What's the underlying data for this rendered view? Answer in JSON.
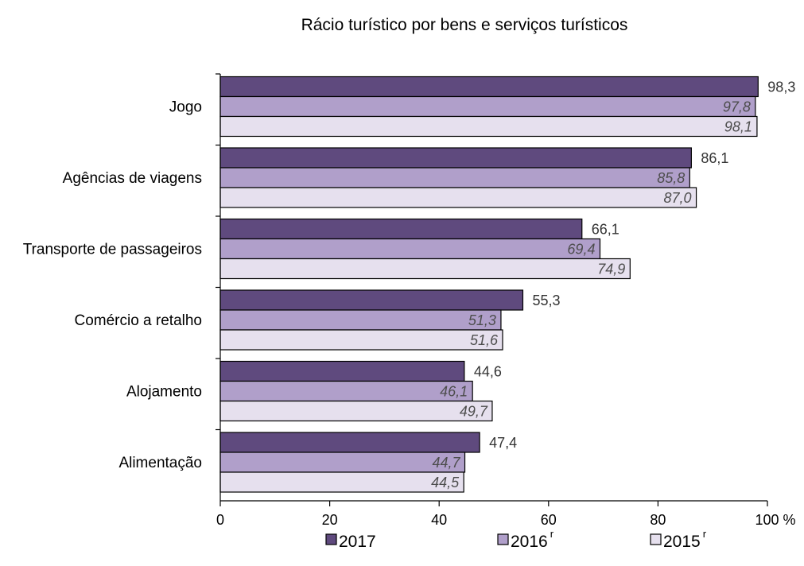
{
  "chart_data": {
    "type": "bar",
    "orientation": "horizontal",
    "title": "Rácio turístico por bens e serviços turísticos",
    "categories": [
      "Jogo",
      "Agências de viagens",
      "Transporte de passageiros",
      "Comércio a retalho",
      "Alojamento",
      "Alimentação"
    ],
    "series": [
      {
        "name": "2017",
        "superscript": "",
        "color": "#5f4a7e",
        "values": [
          98.3,
          86.1,
          66.1,
          55.3,
          44.6,
          47.4
        ],
        "labels": [
          "98,3",
          "86,1",
          "66,1",
          "55,3",
          "44,6",
          "47,4"
        ],
        "label_style": "outside"
      },
      {
        "name": "2016",
        "superscript": "r",
        "color": "#b09fca",
        "values": [
          97.8,
          85.8,
          69.4,
          51.3,
          46.1,
          44.7
        ],
        "labels": [
          "97,8",
          "85,8",
          "69,4",
          "51,3",
          "46,1",
          "44,7"
        ],
        "label_style": "inside-italic"
      },
      {
        "name": "2015",
        "superscript": "r",
        "color": "#e6e0ee",
        "values": [
          98.1,
          87.0,
          74.9,
          51.6,
          49.7,
          44.5
        ],
        "labels": [
          "98,1",
          "87,0",
          "74,9",
          "51,6",
          "49,7",
          "44,5"
        ],
        "label_style": "inside-italic"
      }
    ],
    "xlim": [
      0,
      100
    ],
    "xticks": [
      "0",
      "20",
      "40",
      "60",
      "80",
      "100 %"
    ],
    "grid": false,
    "legend_position": "bottom"
  }
}
